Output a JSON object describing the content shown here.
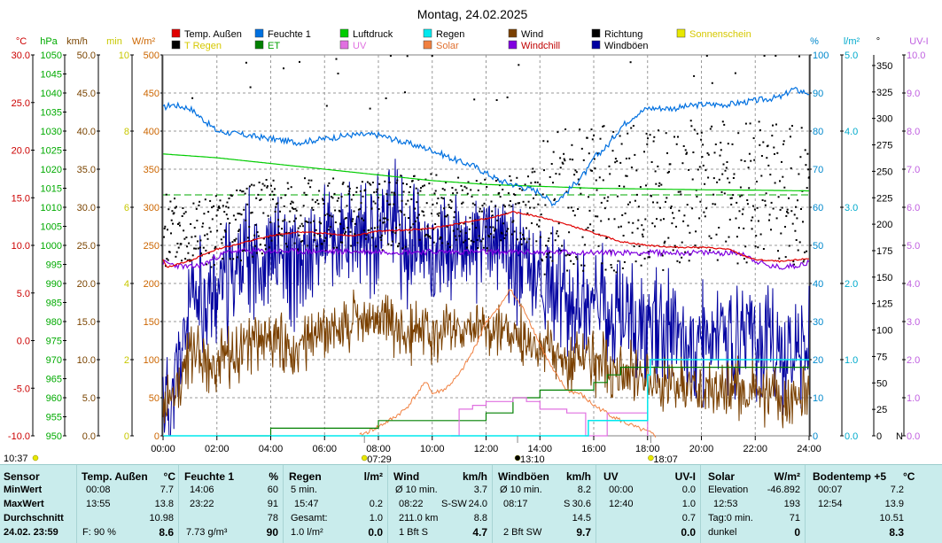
{
  "chart_data": {
    "type": "line",
    "title": "Montag, 24.02.2025",
    "xlabel": "",
    "x_ticks": [
      "00:00",
      "02:00",
      "04:00",
      "06:00",
      "08:00",
      "10:00",
      "12:00",
      "14:00",
      "16:00",
      "18:00",
      "20:00",
      "22:00",
      "24:00"
    ],
    "xlim": [
      0,
      24
    ],
    "axes": [
      {
        "name": "temperature",
        "unit": "°C",
        "color": "#cc0000",
        "range": [
          -10,
          30
        ],
        "ticks": [
          "30.0",
          "25.0",
          "20.0",
          "15.0",
          "10.0",
          "5.0",
          "0.0",
          "-5.0",
          "-10.0"
        ]
      },
      {
        "name": "pressure",
        "unit": "hPa",
        "color": "#00aa00",
        "range": [
          950,
          1050
        ],
        "ticks": [
          "1050",
          "1045",
          "1040",
          "1035",
          "1030",
          "1025",
          "1020",
          "1015",
          "1010",
          "1005",
          "1000",
          "995",
          "990",
          "985",
          "980",
          "975",
          "970",
          "965",
          "960",
          "955",
          "950"
        ]
      },
      {
        "name": "wind",
        "unit": "km/h",
        "color": "#7a4400",
        "range": [
          0,
          50
        ],
        "ticks": [
          "50.0",
          "45.0",
          "40.0",
          "35.0",
          "30.0",
          "25.0",
          "20.0",
          "15.0",
          "10.0",
          "5.0",
          "0.0"
        ]
      },
      {
        "name": "sunshine",
        "unit": "min",
        "color": "#c8c800",
        "range": [
          0,
          10
        ],
        "ticks": [
          "10",
          "8",
          "6",
          "4",
          "2",
          "0"
        ]
      },
      {
        "name": "solar",
        "unit": "W/m²",
        "color": "#cc6600",
        "range": [
          0,
          500
        ],
        "ticks": [
          "500",
          "450",
          "400",
          "350",
          "300",
          "250",
          "200",
          "150",
          "100",
          "50",
          "0"
        ]
      },
      {
        "name": "humidity",
        "unit": "%",
        "color": "#0088cc",
        "range": [
          0,
          100
        ],
        "ticks": [
          "100",
          "90",
          "80",
          "70",
          "60",
          "50",
          "40",
          "30",
          "20",
          "10",
          "0"
        ]
      },
      {
        "name": "rain",
        "unit": "l/m²",
        "color": "#00aacc",
        "range": [
          0,
          5
        ],
        "ticks": [
          "5.0",
          "4.0",
          "3.0",
          "2.0",
          "1.0",
          "0.0"
        ]
      },
      {
        "name": "direction",
        "unit": "°",
        "color": "#000000",
        "range": [
          0,
          360
        ],
        "ticks": [
          "350",
          "325",
          "300",
          "275",
          "250",
          "225",
          "200",
          "175",
          "150",
          "125",
          "100",
          "75",
          "50",
          "25",
          "0"
        ],
        "extra_label": "N"
      },
      {
        "name": "uv",
        "unit": "UV-I",
        "color": "#c060e0",
        "range": [
          0,
          10
        ],
        "ticks": [
          "10.0",
          "9.0",
          "8.0",
          "7.0",
          "6.0",
          "5.0",
          "4.0",
          "3.0",
          "2.0",
          "1.0",
          "0.0"
        ]
      }
    ],
    "legend": [
      {
        "label": "Temp. Außen",
        "color": "#e00000",
        "text_color": "#000000"
      },
      {
        "label": "Feuchte 1",
        "color": "#0070e0",
        "text_color": "#000000"
      },
      {
        "label": "Luftdruck",
        "color": "#00cc00",
        "text_color": "#000000"
      },
      {
        "label": "Regen",
        "color": "#00e8ee",
        "text_color": "#000000"
      },
      {
        "label": "Wind",
        "color": "#7a4000",
        "text_color": "#000000"
      },
      {
        "label": "Richtung",
        "color": "#000000",
        "text_color": "#000000"
      },
      {
        "label": "Sonnenschein",
        "color": "#e8e800",
        "text_color": "#d6c800"
      },
      {
        "label": "T Regen",
        "color": "#000000",
        "text_color": "#d6c800"
      },
      {
        "label": "ET",
        "color": "#008000",
        "text_color": "#00a000"
      },
      {
        "label": "UV",
        "color": "#e070e0",
        "text_color": "#e070e0"
      },
      {
        "label": "Solar",
        "color": "#f08040",
        "text_color": "#e07030"
      },
      {
        "label": "Windchill",
        "color": "#8000e0",
        "text_color": "#c00000"
      },
      {
        "label": "Windböen",
        "color": "#0000a0",
        "text_color": "#000000"
      }
    ],
    "series": [
      {
        "name": "Temp. Außen",
        "unit": "°C",
        "x": [
          0,
          0.13,
          1,
          2,
          3,
          4,
          5,
          6,
          7,
          8,
          9,
          10,
          11,
          12,
          13,
          14,
          15,
          16,
          17,
          18,
          19,
          20,
          21,
          21.5,
          22,
          23,
          23.92,
          24
        ],
        "values": [
          8.5,
          7.7,
          8.4,
          9.6,
          10.3,
          11.0,
          11.4,
          11.3,
          11.0,
          11.5,
          11.6,
          11.8,
          12.3,
          12.8,
          13.5,
          13.0,
          12.2,
          11.3,
          10.4,
          10.0,
          9.8,
          9.8,
          9.6,
          9.0,
          8.5,
          8.3,
          8.6,
          8.6
        ]
      },
      {
        "name": "Windchill",
        "unit": "°C",
        "x": [
          0,
          0.5,
          1,
          1.5,
          2,
          2.5,
          21.5,
          22,
          22.5,
          23,
          23.5,
          24
        ],
        "values": [
          8.2,
          7.9,
          7.7,
          8.0,
          8.8,
          9.4,
          9.2,
          8.4,
          7.8,
          7.7,
          7.9,
          8.2
        ]
      },
      {
        "name": "Feuchte 1",
        "unit": "%",
        "x": [
          0,
          0.3,
          1,
          1.5,
          2,
          3,
          4,
          5,
          6,
          7,
          8,
          9,
          10,
          11,
          11.5,
          12,
          12.5,
          13,
          13.5,
          14,
          14.3,
          14.5,
          15,
          15.4,
          15.8,
          16,
          16.5,
          17,
          17.5,
          18,
          19,
          20,
          21,
          22,
          23,
          23.37,
          24
        ],
        "values": [
          86,
          87,
          86,
          83,
          80,
          79,
          78,
          77,
          78,
          79,
          79,
          77,
          75,
          72,
          71,
          69,
          67,
          66,
          65,
          64,
          62,
          61,
          64,
          67,
          70,
          73,
          76,
          81,
          84,
          86,
          86,
          87,
          87,
          88,
          89,
          91,
          90
        ]
      },
      {
        "name": "Luftdruck",
        "unit": "hPa",
        "x": [
          0,
          2,
          4,
          6,
          8,
          10,
          12,
          14,
          16,
          18,
          20,
          22,
          24
        ],
        "values": [
          1024,
          1023,
          1021.5,
          1020,
          1018.5,
          1017,
          1016,
          1015.5,
          1015,
          1014.8,
          1014.6,
          1014.5,
          1014.3
        ]
      },
      {
        "name": "Regen",
        "unit": "l/m²",
        "x": [
          0,
          15.7,
          15.8,
          18.0,
          18.1,
          24
        ],
        "values": [
          0,
          0,
          0.2,
          0.8,
          1.0,
          1.0
        ]
      },
      {
        "name": "Solar",
        "unit": "W/m²",
        "x": [
          7.3,
          8.0,
          8.5,
          9.0,
          9.5,
          9.8,
          10.0,
          10.5,
          11.0,
          11.5,
          12.0,
          12.5,
          12.87,
          13.5,
          14.0,
          14.5,
          15.0,
          15.5,
          16.0,
          16.5,
          17.0,
          17.5,
          18.0,
          18.3
        ],
        "values": [
          0,
          12,
          22,
          35,
          58,
          72,
          55,
          62,
          80,
          110,
          150,
          168,
          193,
          160,
          120,
          85,
          60,
          55,
          40,
          30,
          20,
          12,
          5,
          0
        ]
      },
      {
        "name": "UV",
        "unit": "UV-I",
        "x": [
          10.7,
          11.0,
          11.5,
          12.0,
          12.5,
          13.0,
          13.5,
          14.0,
          14.5,
          15.0,
          15.3,
          15.5,
          15.7,
          16.0,
          16.5,
          17.0,
          17.5,
          18.0
        ],
        "values": [
          0,
          0.7,
          0.8,
          0.9,
          0.9,
          1.0,
          0.9,
          0.7,
          0.7,
          0.6,
          0.6,
          0.6,
          0,
          0,
          0.6,
          0.6,
          0.6,
          0
        ]
      },
      {
        "name": "ET",
        "unit": "l/m²",
        "x": [
          2,
          4,
          6,
          8,
          10,
          12,
          13,
          14,
          16,
          16.5,
          17,
          18,
          24
        ],
        "values": [
          0,
          0.1,
          0.1,
          0.2,
          0.2,
          0.3,
          0.5,
          0.6,
          0.7,
          0.8,
          0.9,
          0.9,
          0.9
        ]
      },
      {
        "name": "Wind",
        "unit": "km/h",
        "x": [
          0,
          0.13,
          1,
          2,
          3,
          4,
          5,
          6,
          7,
          8,
          9,
          10,
          11,
          12,
          13,
          14,
          15,
          16,
          17,
          18,
          19,
          20,
          21,
          22,
          23,
          24
        ],
        "values": [
          3.7,
          4.0,
          10.5,
          9.0,
          12.0,
          12.5,
          11.0,
          14.0,
          14.5,
          15.5,
          14.0,
          13.0,
          14.0,
          14.5,
          13.5,
          11.5,
          10.0,
          9.5,
          9.0,
          7.5,
          6.5,
          6.0,
          6.0,
          5.5,
          5.0,
          5.5
        ]
      },
      {
        "name": "Windböen",
        "unit": "km/h",
        "x": [
          0,
          0.3,
          1,
          2,
          3,
          4,
          5,
          6,
          7,
          8,
          8.37,
          9,
          10,
          11,
          12,
          13,
          14,
          15,
          16,
          17,
          18,
          19,
          20,
          21,
          22,
          23,
          24
        ],
        "values": [
          5.0,
          4.0,
          17.0,
          19.0,
          23.0,
          24.0,
          22.0,
          26.0,
          25.0,
          27.0,
          30.6,
          25.0,
          24.0,
          25.0,
          26.0,
          24.0,
          20.0,
          18.0,
          17.0,
          15.5,
          14.0,
          13.0,
          12.0,
          12.5,
          12.0,
          11.0,
          11.5
        ]
      },
      {
        "name": "Richtung",
        "unit": "°",
        "type": "scatter",
        "x": [
          0,
          2,
          4,
          6,
          8,
          10,
          12,
          14,
          16,
          18,
          20,
          22,
          24
        ],
        "values": [
          195,
          195,
          210,
          210,
          210,
          215,
          210,
          220,
          225,
          225,
          230,
          235,
          230
        ]
      }
    ],
    "markers": [
      {
        "label": "07:29",
        "x": 7.48,
        "color": "#e8e800"
      },
      {
        "label": "13:10",
        "x": 13.17,
        "color": "#000000"
      },
      {
        "label": "18:07",
        "x": 18.12,
        "color": "#e8e800"
      }
    ],
    "corner_time": "10:37"
  },
  "table": {
    "row_labels": [
      "Sensor",
      "MinWert",
      "MaxWert",
      "Durchschnitt",
      "24.02. 23:59"
    ],
    "columns": [
      {
        "title": "Temp. Außen",
        "unit": "°C",
        "min_time": "00:08",
        "min_val": "7.7",
        "max_time": "13:55",
        "max_val": "13.8",
        "avg": "10.98",
        "cur_label": "F: 90 %",
        "cur_val": "8.6"
      },
      {
        "title": "Feuchte 1",
        "unit": "%",
        "min_time": "14:06",
        "min_val": "60",
        "max_time": "23:22",
        "max_val": "91",
        "avg": "78",
        "cur_label": "7.73 g/m³",
        "cur_val": "90"
      },
      {
        "title": "Regen",
        "unit": "l/m²",
        "r1_label": "5 min.",
        "r1_val": "",
        "r2_label": "15:47",
        "r2_val": "0.2",
        "r3_label": "Gesamt:",
        "r3_val": "1.0",
        "cur_label": "1.0 l/m²",
        "cur_val": "0.0"
      },
      {
        "title": "Wind",
        "unit": "km/h",
        "r1_label": "Ø 10 min.",
        "r1_val": "3.7",
        "r2_time": "08:22",
        "r2_label": "S-SW",
        "r2_val": "24.0",
        "r3_label": "211.0 km",
        "r3_val": "8.8",
        "cur_label": "1 Bft S",
        "cur_val": "4.7"
      },
      {
        "title": "Windböen",
        "unit": "km/h",
        "r1_label": "Ø 10 min.",
        "r1_val": "8.2",
        "r2_time": "08:17",
        "r2_label": "S",
        "r2_val": "30.6",
        "r3_val": "14.5",
        "cur_label": "2 Bft SW",
        "cur_val": "9.7"
      },
      {
        "title": "UV",
        "unit": "UV-I",
        "r1_label": "00:00",
        "r1_val": "0.0",
        "r2_label": "12:40",
        "r2_val": "1.0",
        "r3_val": "0.7",
        "cur_val": "0.0"
      },
      {
        "title": "Solar",
        "unit": "W/m²",
        "r1_label": "Elevation",
        "r1_val": "-46.892",
        "r2_label": "12:53",
        "r2_val": "193",
        "r3_label": "Tag:0 min.",
        "r3_val": "71",
        "cur_label": "dunkel",
        "cur_val": "0"
      },
      {
        "title": "Bodentemp +5",
        "unit": "°C",
        "r1_label": "00:07",
        "r1_val": "7.2",
        "r2_label": "12:54",
        "r2_val": "13.9",
        "r3_val": "10.51",
        "cur_val": "8.3"
      }
    ]
  }
}
